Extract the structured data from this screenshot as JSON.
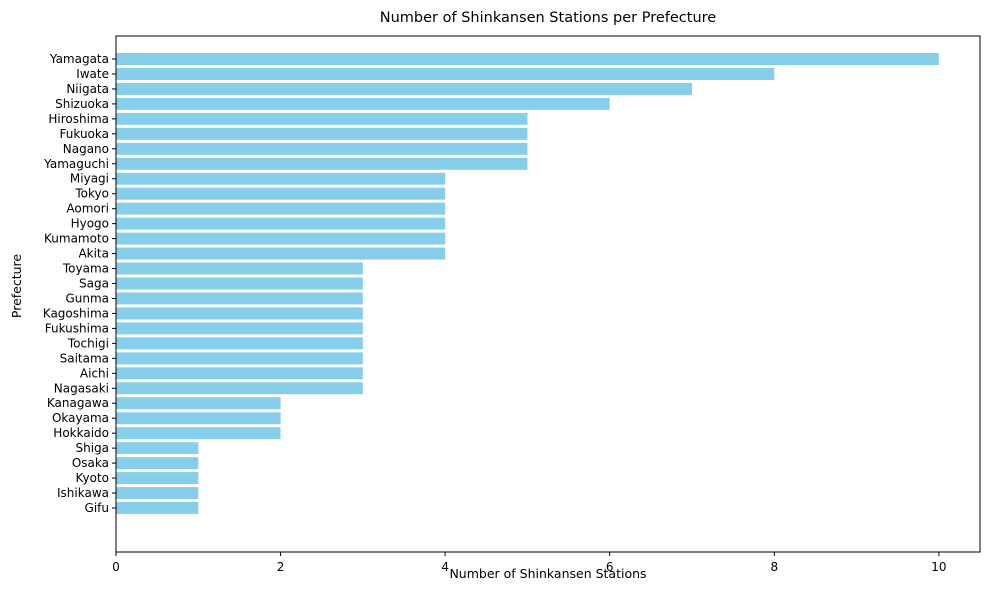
{
  "chart_data": {
    "type": "bar",
    "orientation": "horizontal",
    "title": "Number of Shinkansen Stations per Prefecture",
    "xlabel": "Number of Shinkansen Stations",
    "ylabel": "Prefecture",
    "xlim": [
      0,
      10.5
    ],
    "x_ticks": [
      0,
      2,
      4,
      6,
      8,
      10
    ],
    "grid": false,
    "bar_color": "#87ceeb",
    "categories": [
      "Yamagata",
      "Iwate",
      "Niigata",
      "Shizuoka",
      "Hiroshima",
      "Fukuoka",
      "Nagano",
      "Yamaguchi",
      "Miyagi",
      "Tokyo",
      "Aomori",
      "Hyogo",
      "Kumamoto",
      "Akita",
      "Toyama",
      "Saga",
      "Gunma",
      "Kagoshima",
      "Fukushima",
      "Tochigi",
      "Saitama",
      "Aichi",
      "Nagasaki",
      "Kanagawa",
      "Okayama",
      "Hokkaido",
      "Shiga",
      "Osaka",
      "Kyoto",
      "Ishikawa",
      "Gifu"
    ],
    "values": [
      10,
      8,
      7,
      6,
      5,
      5,
      5,
      5,
      4,
      4,
      4,
      4,
      4,
      4,
      3,
      3,
      3,
      3,
      3,
      3,
      3,
      3,
      3,
      2,
      2,
      2,
      1,
      1,
      1,
      1,
      1
    ]
  }
}
